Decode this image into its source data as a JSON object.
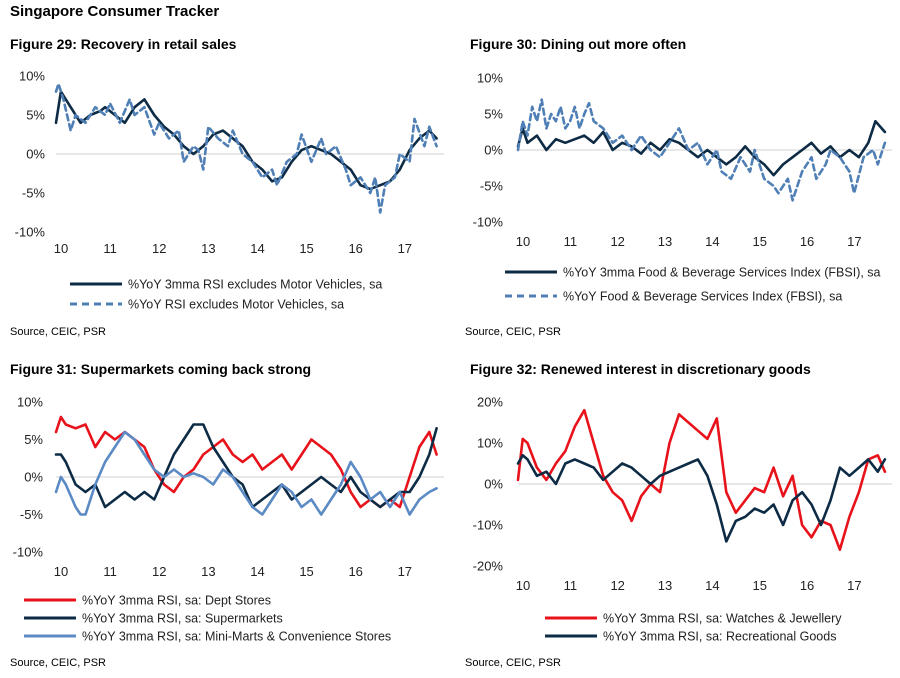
{
  "page_title": "Singapore Consumer Tracker",
  "source_note": "Source, CEIC, PSR",
  "colors": {
    "navy": "#0d2b45",
    "blue_dash": "#4f7fb5",
    "red": "#e8121b",
    "light_blue": "#5b8ac4"
  },
  "chart_data": [
    {
      "id": "fig29",
      "type": "line",
      "title": "Figure 29: Recovery in retail sales",
      "x_ticks": [
        "10",
        "11",
        "12",
        "13",
        "14",
        "15",
        "16",
        "17"
      ],
      "xlim": [
        2010,
        2017.9
      ],
      "ylim": [
        -10,
        10
      ],
      "y_ticks": [
        10,
        5,
        0,
        -5,
        -10
      ],
      "y_tick_labels": [
        "10%",
        "5%",
        "0%",
        "-5%",
        "-10%"
      ],
      "legend": "bottom",
      "series": [
        {
          "name": "%YoY 3mma RSI excludes Motor Vehicles, sa",
          "color": "#0d2b45",
          "dash": false,
          "x": [
            2010,
            2010.1,
            2010.2,
            2010.3,
            2010.5,
            2010.7,
            2010.9,
            2011.0,
            2011.2,
            2011.4,
            2011.6,
            2011.8,
            2012.0,
            2012.2,
            2012.4,
            2012.6,
            2012.8,
            2013.0,
            2013.2,
            2013.4,
            2013.6,
            2013.8,
            2014.0,
            2014.2,
            2014.4,
            2014.6,
            2014.8,
            2015.0,
            2015.2,
            2015.4,
            2015.6,
            2015.8,
            2016.0,
            2016.2,
            2016.4,
            2016.6,
            2016.8,
            2017.0,
            2017.2,
            2017.4,
            2017.6,
            2017.75
          ],
          "y": [
            4,
            8,
            7,
            6,
            4,
            5,
            5.5,
            6,
            5,
            4,
            6,
            7,
            5,
            3.5,
            2.5,
            1,
            0,
            1,
            2.5,
            3,
            2,
            1,
            -1,
            -2,
            -3.5,
            -3,
            -1,
            0.5,
            1,
            0.5,
            0,
            -1,
            -2,
            -4,
            -4.5,
            -4,
            -3.5,
            -2,
            0.5,
            2,
            3,
            2
          ]
        },
        {
          "name": "%YoY RSI excludes Motor Vehicles, sa",
          "color": "#4f7fb5",
          "dash": true,
          "x": [
            2010,
            2010.05,
            2010.15,
            2010.3,
            2010.4,
            2010.6,
            2010.8,
            2011.0,
            2011.1,
            2011.3,
            2011.5,
            2011.6,
            2011.8,
            2012.0,
            2012.1,
            2012.3,
            2012.5,
            2012.6,
            2012.8,
            2012.9,
            2013.0,
            2013.1,
            2013.3,
            2013.5,
            2013.6,
            2013.8,
            2014.0,
            2014.2,
            2014.4,
            2014.5,
            2014.7,
            2014.9,
            2015.0,
            2015.2,
            2015.4,
            2015.5,
            2015.7,
            2015.9,
            2016.0,
            2016.2,
            2016.4,
            2016.5,
            2016.6,
            2016.7,
            2016.9,
            2017.0,
            2017.2,
            2017.3,
            2017.5,
            2017.6,
            2017.75
          ],
          "y": [
            8,
            9,
            7,
            3,
            5,
            4,
            6,
            5,
            6.5,
            4,
            7,
            5,
            6,
            2.5,
            4,
            2,
            3,
            -1,
            1,
            0.5,
            -2,
            3.5,
            2,
            1,
            3,
            0,
            -1,
            -3,
            -2,
            -4,
            -1,
            0,
            2.5,
            -1,
            2,
            0,
            1,
            -2,
            -4,
            -3,
            -5,
            -3,
            -7.5,
            -4,
            -3,
            0,
            -1,
            4.5,
            1,
            3.5,
            1
          ]
        }
      ]
    },
    {
      "id": "fig30",
      "type": "line",
      "title": "Figure 30: Dining out more often",
      "x_ticks": [
        "10",
        "11",
        "12",
        "13",
        "14",
        "15",
        "16",
        "17"
      ],
      "xlim": [
        2010,
        2017.9
      ],
      "ylim": [
        -10,
        10
      ],
      "y_ticks": [
        10,
        5,
        0,
        -5,
        -10
      ],
      "y_tick_labels": [
        "10%",
        "5%",
        "0%",
        "-5%",
        "-10%"
      ],
      "legend": "bottom",
      "series": [
        {
          "name": "%YoY 3mma Food & Beverage Services Index (FBSI), sa",
          "color": "#0d2b45",
          "dash": false,
          "x": [
            2010,
            2010.1,
            2010.2,
            2010.4,
            2010.6,
            2010.8,
            2011.0,
            2011.2,
            2011.4,
            2011.6,
            2011.8,
            2012.0,
            2012.2,
            2012.4,
            2012.6,
            2012.8,
            2013.0,
            2013.2,
            2013.4,
            2013.6,
            2013.8,
            2014.0,
            2014.2,
            2014.4,
            2014.6,
            2014.8,
            2015.0,
            2015.2,
            2015.4,
            2015.6,
            2015.8,
            2016.0,
            2016.2,
            2016.4,
            2016.6,
            2016.8,
            2017.0,
            2017.2,
            2017.4,
            2017.55,
            2017.75
          ],
          "y": [
            0.5,
            3,
            1,
            2,
            0,
            1.5,
            1,
            1.5,
            2,
            1,
            2.5,
            0,
            1,
            0.5,
            -0.5,
            1,
            0,
            1.5,
            1,
            0,
            -1,
            0,
            -1,
            -2,
            -1,
            0.5,
            -1,
            -2,
            -3.5,
            -2,
            -1,
            0,
            1,
            -0.5,
            0.5,
            -1,
            0,
            -1,
            1,
            4,
            2.5
          ]
        },
        {
          "name": "%YoY Food & Beverage Services Index (FBSI), sa",
          "color": "#4f7fb5",
          "dash": true,
          "x": [
            2010,
            2010.1,
            2010.2,
            2010.3,
            2010.4,
            2010.5,
            2010.6,
            2010.7,
            2010.8,
            2010.9,
            2011.0,
            2011.1,
            2011.2,
            2011.3,
            2011.4,
            2011.5,
            2011.6,
            2011.8,
            2012.0,
            2012.2,
            2012.4,
            2012.6,
            2012.8,
            2013.0,
            2013.2,
            2013.4,
            2013.6,
            2013.8,
            2014.0,
            2014.2,
            2014.3,
            2014.5,
            2014.7,
            2014.9,
            2015.0,
            2015.2,
            2015.4,
            2015.5,
            2015.7,
            2015.8,
            2016.0,
            2016.2,
            2016.3,
            2016.5,
            2016.6,
            2016.8,
            2017.0,
            2017.1,
            2017.3,
            2017.5,
            2017.6,
            2017.75
          ],
          "y": [
            0,
            4,
            2,
            6,
            4,
            7,
            3,
            5,
            4,
            6,
            3,
            4,
            6,
            3,
            5,
            6.5,
            4,
            3,
            1,
            2,
            0,
            2,
            0,
            -1,
            1,
            3,
            0,
            1,
            -2,
            0,
            -3,
            -4,
            -1,
            -3,
            0,
            -4,
            -5,
            -6,
            -4,
            -7,
            -3,
            -1,
            -4,
            -2,
            0,
            -1,
            -3,
            -6,
            -1,
            0,
            -2,
            1
          ]
        }
      ]
    },
    {
      "id": "fig31",
      "type": "line",
      "title": "Figure 31:  Supermarkets coming back strong",
      "x_ticks": [
        "10",
        "11",
        "12",
        "13",
        "14",
        "15",
        "16",
        "17"
      ],
      "xlim": [
        2010,
        2017.9
      ],
      "ylim": [
        -10,
        10
      ],
      "y_ticks": [
        10,
        5,
        0,
        -5,
        -10
      ],
      "y_tick_labels": [
        "10%",
        "5%",
        "0%",
        "-5%",
        "-10%"
      ],
      "legend": "bottom",
      "series": [
        {
          "name": "%YoY 3mma RSI, sa: Dept Stores",
          "color": "#e8121b",
          "dash": false,
          "x": [
            2010,
            2010.1,
            2010.2,
            2010.4,
            2010.6,
            2010.8,
            2011.0,
            2011.2,
            2011.4,
            2011.6,
            2011.8,
            2012.0,
            2012.2,
            2012.4,
            2012.6,
            2012.8,
            2013.0,
            2013.2,
            2013.4,
            2013.6,
            2013.8,
            2014.0,
            2014.2,
            2014.4,
            2014.6,
            2014.8,
            2015.0,
            2015.2,
            2015.4,
            2015.6,
            2015.8,
            2016.0,
            2016.2,
            2016.4,
            2016.6,
            2016.8,
            2017.0,
            2017.2,
            2017.4,
            2017.6,
            2017.75
          ],
          "y": [
            6,
            8,
            7,
            6.5,
            7,
            4,
            6,
            5,
            6,
            5,
            4,
            1,
            -1,
            -2,
            0,
            1,
            3,
            4,
            5,
            3,
            2,
            3,
            1,
            2,
            3,
            1,
            3,
            5,
            4,
            3,
            1,
            -2,
            -4,
            -3,
            -4,
            -3,
            -4,
            0,
            4,
            6,
            3
          ]
        },
        {
          "name": "%YoY 3mma RSI, sa: Supermarkets",
          "color": "#0d2b45",
          "dash": false,
          "x": [
            2010,
            2010.1,
            2010.2,
            2010.4,
            2010.6,
            2010.8,
            2011.0,
            2011.2,
            2011.4,
            2011.6,
            2011.8,
            2012.0,
            2012.2,
            2012.4,
            2012.6,
            2012.8,
            2013.0,
            2013.2,
            2013.4,
            2013.6,
            2013.8,
            2014.0,
            2014.2,
            2014.4,
            2014.6,
            2014.8,
            2015.0,
            2015.2,
            2015.4,
            2015.6,
            2015.8,
            2016.0,
            2016.2,
            2016.4,
            2016.6,
            2016.8,
            2017.0,
            2017.2,
            2017.4,
            2017.6,
            2017.75
          ],
          "y": [
            3,
            3,
            2,
            -1,
            -2,
            -1,
            -4,
            -3,
            -2,
            -3,
            -2,
            -3,
            0,
            3,
            5,
            7,
            7,
            4,
            2,
            0,
            -1,
            -4,
            -3,
            -2,
            -1,
            -3,
            -2,
            -1,
            0,
            -1,
            -2,
            0,
            -2,
            -3,
            -4,
            -3,
            -2,
            -2,
            0,
            3,
            6.5
          ]
        },
        {
          "name": "%YoY 3mma RSI, sa: Mini-Marts & Convenience Stores",
          "color": "#5b8ac4",
          "dash": false,
          "x": [
            2010,
            2010.1,
            2010.2,
            2010.4,
            2010.5,
            2010.6,
            2010.8,
            2011.0,
            2011.2,
            2011.4,
            2011.6,
            2011.8,
            2012.0,
            2012.2,
            2012.4,
            2012.6,
            2012.8,
            2013.0,
            2013.2,
            2013.4,
            2013.6,
            2013.8,
            2014.0,
            2014.2,
            2014.4,
            2014.6,
            2014.8,
            2015.0,
            2015.2,
            2015.4,
            2015.6,
            2015.8,
            2016.0,
            2016.2,
            2016.4,
            2016.6,
            2016.8,
            2017.0,
            2017.2,
            2017.4,
            2017.6,
            2017.75
          ],
          "y": [
            -2,
            0,
            -1,
            -4,
            -5,
            -5,
            -1,
            2,
            4,
            6,
            5,
            3,
            1,
            0,
            1,
            0,
            0.5,
            0,
            -1,
            1,
            0,
            -2,
            -4,
            -5,
            -3,
            -1,
            -2,
            -4,
            -3,
            -5,
            -3,
            -1,
            2,
            0,
            -3,
            -2,
            -4,
            -2,
            -5,
            -3,
            -2,
            -1.5
          ]
        }
      ]
    },
    {
      "id": "fig32",
      "type": "line",
      "title": "Figure 32:  Renewed interest in discretionary goods",
      "x_ticks": [
        "10",
        "11",
        "12",
        "13",
        "14",
        "15",
        "16",
        "17"
      ],
      "xlim": [
        2010,
        2017.9
      ],
      "ylim": [
        -20,
        20
      ],
      "y_ticks": [
        20,
        10,
        0,
        -10,
        -20
      ],
      "y_tick_labels": [
        "20%",
        "10%",
        "0%",
        "-10%",
        "-20%"
      ],
      "legend": "bottom",
      "series": [
        {
          "name": "%YoY 3mma RSI, sa: Watches & Jewellery",
          "color": "#e8121b",
          "dash": false,
          "x": [
            2010,
            2010.1,
            2010.2,
            2010.4,
            2010.6,
            2010.8,
            2011.0,
            2011.2,
            2011.4,
            2011.6,
            2011.8,
            2012.0,
            2012.2,
            2012.4,
            2012.6,
            2012.8,
            2013.0,
            2013.2,
            2013.4,
            2013.6,
            2013.8,
            2014.0,
            2014.2,
            2014.4,
            2014.6,
            2014.8,
            2015.0,
            2015.2,
            2015.4,
            2015.6,
            2015.8,
            2016.0,
            2016.2,
            2016.4,
            2016.6,
            2016.8,
            2017.0,
            2017.2,
            2017.4,
            2017.6,
            2017.75
          ],
          "y": [
            1,
            11,
            10,
            4,
            1,
            5,
            8,
            14,
            18,
            10,
            2,
            -2,
            -4,
            -9,
            -3,
            0,
            -2,
            10,
            17,
            15,
            13,
            11,
            16,
            -2,
            -7,
            -4,
            -1,
            -2,
            4,
            -3,
            2,
            -10,
            -13,
            -9,
            -10,
            -16,
            -8,
            -2,
            6,
            7,
            3
          ]
        },
        {
          "name": "%YoY 3mma RSI, sa: Recreational Goods",
          "color": "#0d2b45",
          "dash": false,
          "x": [
            2010,
            2010.1,
            2010.2,
            2010.4,
            2010.6,
            2010.8,
            2011.0,
            2011.2,
            2011.4,
            2011.6,
            2011.8,
            2012.0,
            2012.2,
            2012.4,
            2012.6,
            2012.8,
            2013.0,
            2013.2,
            2013.4,
            2013.6,
            2013.8,
            2014.0,
            2014.2,
            2014.4,
            2014.6,
            2014.8,
            2015.0,
            2015.2,
            2015.4,
            2015.6,
            2015.8,
            2016.0,
            2016.2,
            2016.4,
            2016.6,
            2016.8,
            2017.0,
            2017.2,
            2017.4,
            2017.6,
            2017.75
          ],
          "y": [
            5,
            7,
            6,
            2,
            3,
            0,
            5,
            6,
            5,
            4,
            1,
            3,
            5,
            4,
            2,
            0,
            2,
            3,
            4,
            5,
            6,
            2,
            -5,
            -14,
            -9,
            -8,
            -6,
            -7,
            -5,
            -10,
            -4,
            -2,
            -5,
            -10,
            -4,
            4,
            2,
            4,
            6,
            3,
            6
          ]
        }
      ]
    }
  ]
}
